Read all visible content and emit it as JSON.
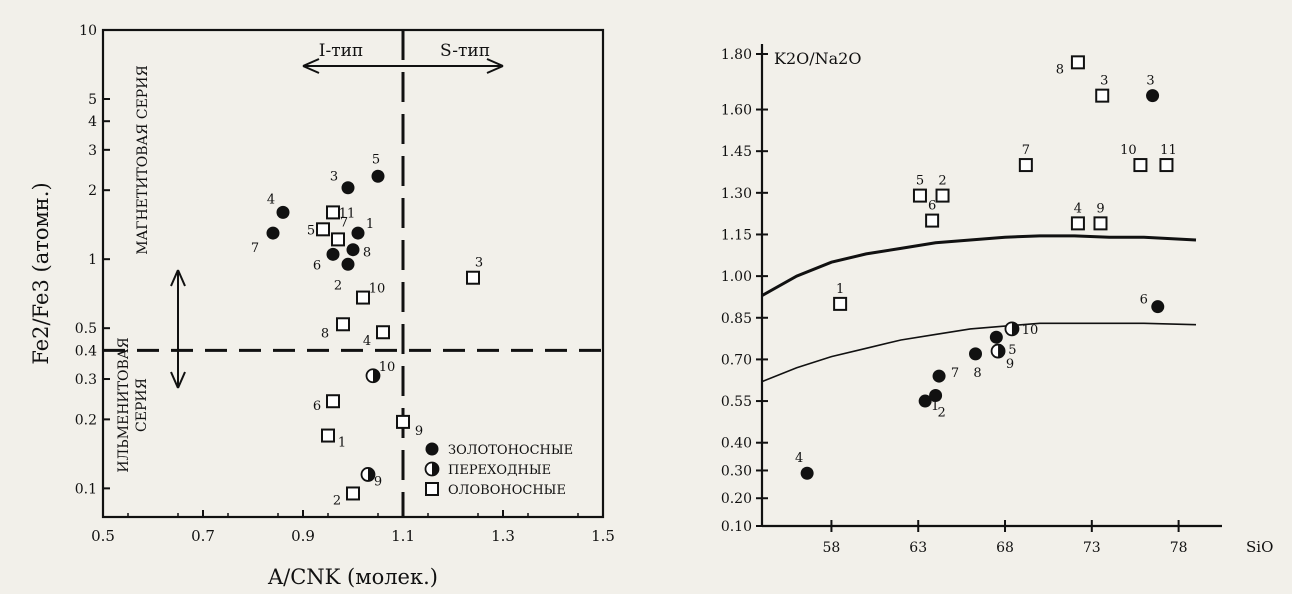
{
  "chart_data": [
    {
      "type": "scatter",
      "xlabel": "A/CNK (молек.)",
      "ylabel": "Fe2/Fe3 (атомн.)",
      "xscale": "linear",
      "yscale": "log",
      "xlim": [
        0.5,
        1.5
      ],
      "ylim": [
        0.075,
        10
      ],
      "grid": false,
      "xticks": [
        0.5,
        0.7,
        0.9,
        1.1,
        1.3,
        1.5
      ],
      "xtick_labels": [
        "0.5",
        "0.7",
        "0.9",
        "1.1",
        "1.3",
        "1.5"
      ],
      "yticks": [
        0.1,
        0.2,
        0.3,
        0.4,
        0.5,
        1,
        2,
        3,
        4,
        5,
        10
      ],
      "ytick_labels": [
        "0.1",
        "0.2",
        "0.3",
        "0.4",
        "0.5",
        "1",
        "2",
        "3",
        "4",
        "5",
        "10"
      ],
      "divider_x": 1.1,
      "divider_y": 0.4,
      "region_labels": {
        "i_type": "I-тип",
        "s_type": "S-тип",
        "magnetite": "МАГНЕТИТОВАЯ СЕРИЯ",
        "ilmenite_line1": "ИЛЬМЕНИТОВАЯ",
        "ilmenite_line2": "СЕРИЯ"
      },
      "legend_position": "lower-right",
      "series": [
        {
          "name": "ЗОЛОТОНОСНЫЕ",
          "marker": "filled-circle",
          "points": [
            {
              "label": "1",
              "x": 1.01,
              "y": 1.3
            },
            {
              "label": "2",
              "x": 0.99,
              "y": 0.95
            },
            {
              "label": "3",
              "x": 0.99,
              "y": 2.05
            },
            {
              "label": "4",
              "x": 0.86,
              "y": 1.6
            },
            {
              "label": "5",
              "x": 1.05,
              "y": 2.3
            },
            {
              "label": "6",
              "x": 0.96,
              "y": 1.05
            },
            {
              "label": "7",
              "x": 0.84,
              "y": 1.3
            },
            {
              "label": "8",
              "x": 1.0,
              "y": 1.1
            }
          ]
        },
        {
          "name": "ПЕРЕХОДНЫЕ",
          "marker": "half-circle",
          "points": [
            {
              "label": "9",
              "x": 1.03,
              "y": 0.115
            },
            {
              "label": "10",
              "x": 1.04,
              "y": 0.31
            }
          ]
        },
        {
          "name": "ОЛОВОНОСНЫЕ",
          "marker": "open-square",
          "points": [
            {
              "label": "1",
              "x": 0.95,
              "y": 0.17
            },
            {
              "label": "2",
              "x": 1.0,
              "y": 0.095
            },
            {
              "label": "3",
              "x": 1.24,
              "y": 0.83
            },
            {
              "label": "4",
              "x": 1.06,
              "y": 0.48
            },
            {
              "label": "5",
              "x": 0.94,
              "y": 1.35
            },
            {
              "label": "6",
              "x": 0.96,
              "y": 0.24
            },
            {
              "label": "7",
              "x": 0.97,
              "y": 1.22
            },
            {
              "label": "8",
              "x": 0.98,
              "y": 0.52
            },
            {
              "label": "9",
              "x": 1.1,
              "y": 0.195
            },
            {
              "label": "10",
              "x": 1.02,
              "y": 0.68
            },
            {
              "label": "11",
              "x": 0.96,
              "y": 1.6
            }
          ]
        }
      ]
    },
    {
      "type": "scatter",
      "xlabel": "SiO",
      "ylabel": "K2O/Na2O",
      "xscale": "linear",
      "yscale": "linear",
      "xlim": [
        54,
        80.5
      ],
      "ylim": [
        0.1,
        1.8
      ],
      "grid": false,
      "xticks": [
        58,
        63,
        68,
        73,
        78
      ],
      "xtick_labels": [
        "58",
        "63",
        "68",
        "73",
        "78"
      ],
      "yticks": [
        0.1,
        0.2,
        0.3,
        0.4,
        0.55,
        0.7,
        0.85,
        1.0,
        1.15,
        1.3,
        1.45,
        1.6,
        1.8
      ],
      "ytick_labels": [
        "0.10",
        "0.20",
        "0.30",
        "0.40",
        "0.55",
        "0.70",
        "0.85",
        "1.00",
        "1.15",
        "1.30",
        "1.45",
        "1.60",
        "1.80"
      ],
      "grid_off": true,
      "boundary_curves": [
        {
          "x": [
            54,
            56,
            58,
            60,
            62,
            64,
            66,
            68,
            70,
            72,
            74,
            76,
            79
          ],
          "y": [
            0.93,
            1.0,
            1.05,
            1.08,
            1.1,
            1.12,
            1.13,
            1.14,
            1.145,
            1.145,
            1.14,
            1.14,
            1.13
          ]
        },
        {
          "x": [
            54,
            56,
            58,
            60,
            62,
            64,
            66,
            68,
            70,
            72,
            74,
            76,
            79
          ],
          "y": [
            0.62,
            0.67,
            0.71,
            0.74,
            0.77,
            0.79,
            0.81,
            0.82,
            0.83,
            0.83,
            0.83,
            0.83,
            0.825
          ]
        }
      ],
      "series": [
        {
          "name": "ЗОЛОТОНОСНЫЕ",
          "marker": "filled-circle",
          "points": [
            {
              "label": "1",
              "x": 63.4,
              "y": 0.55
            },
            {
              "label": "2",
              "x": 64.0,
              "y": 0.57
            },
            {
              "label": "3",
              "x": 76.5,
              "y": 1.65
            },
            {
              "label": "4",
              "x": 56.6,
              "y": 0.29
            },
            {
              "label": "5",
              "x": 67.5,
              "y": 0.78
            },
            {
              "label": "6",
              "x": 76.8,
              "y": 0.89
            },
            {
              "label": "7",
              "x": 64.2,
              "y": 0.64
            },
            {
              "label": "8",
              "x": 66.3,
              "y": 0.72
            }
          ]
        },
        {
          "name": "ПЕРЕХОДНЫЕ",
          "marker": "half-circle",
          "points": [
            {
              "label": "9",
              "x": 67.6,
              "y": 0.73
            },
            {
              "label": "10",
              "x": 68.4,
              "y": 0.81
            }
          ]
        },
        {
          "name": "ОЛОВОНОСНЫЕ",
          "marker": "open-square",
          "points": [
            {
              "label": "1",
              "x": 58.5,
              "y": 0.9
            },
            {
              "label": "2",
              "x": 64.4,
              "y": 1.29
            },
            {
              "label": "3",
              "x": 73.6,
              "y": 1.65
            },
            {
              "label": "4",
              "x": 72.2,
              "y": 1.19
            },
            {
              "label": "5",
              "x": 63.1,
              "y": 1.29
            },
            {
              "label": "6",
              "x": 63.8,
              "y": 1.2
            },
            {
              "label": "7",
              "x": 69.2,
              "y": 1.4
            },
            {
              "label": "8",
              "x": 72.2,
              "y": 1.77
            },
            {
              "label": "9",
              "x": 73.5,
              "y": 1.19
            },
            {
              "label": "10",
              "x": 75.8,
              "y": 1.4
            },
            {
              "label": "11",
              "x": 77.3,
              "y": 1.4
            }
          ]
        }
      ]
    }
  ]
}
